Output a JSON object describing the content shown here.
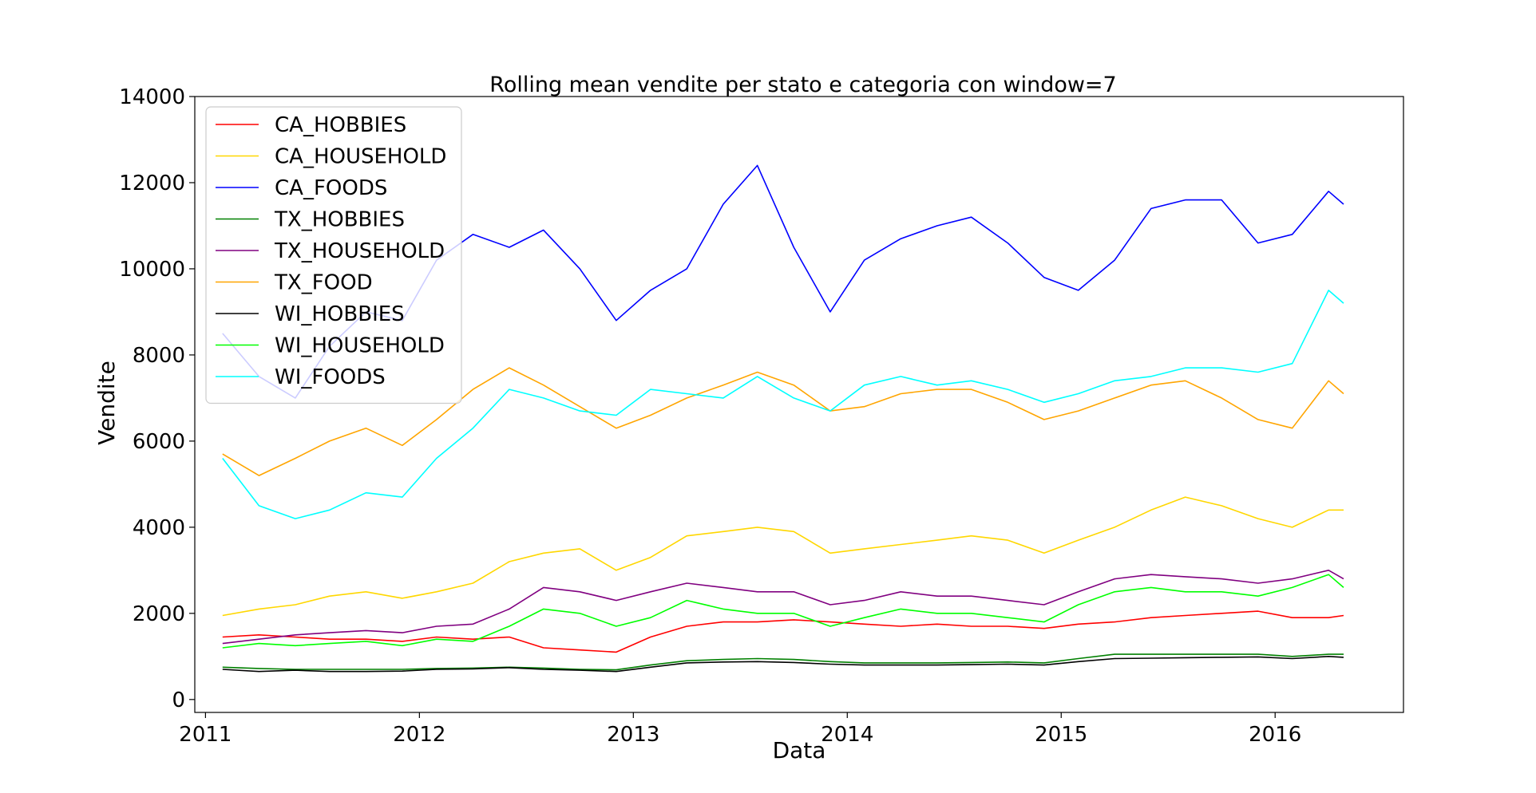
{
  "chart_data": {
    "type": "line",
    "title": "Rolling mean vendite per stato e categoria con window=7",
    "xlabel": "Data",
    "ylabel": "Vendite",
    "xlim": [
      2010.95,
      2016.6
    ],
    "ylim": [
      -300,
      14000
    ],
    "x_ticks": [
      "2011",
      "2012",
      "2013",
      "2014",
      "2015",
      "2016"
    ],
    "y_ticks": [
      "0",
      "2000",
      "4000",
      "6000",
      "8000",
      "10000",
      "12000",
      "14000"
    ],
    "grid": false,
    "legend_position": "upper-left",
    "x": [
      2011.08,
      2011.25,
      2011.42,
      2011.58,
      2011.75,
      2011.92,
      2012.08,
      2012.25,
      2012.42,
      2012.58,
      2012.75,
      2012.92,
      2013.08,
      2013.25,
      2013.42,
      2013.58,
      2013.75,
      2013.92,
      2014.08,
      2014.25,
      2014.42,
      2014.58,
      2014.75,
      2014.92,
      2015.08,
      2015.25,
      2015.42,
      2015.58,
      2015.75,
      2015.92,
      2016.08,
      2016.25,
      2016.32
    ],
    "series": [
      {
        "name": "CA_HOBBIES",
        "color": "#ff0000",
        "values": [
          1450,
          1500,
          1450,
          1400,
          1400,
          1350,
          1450,
          1400,
          1450,
          1200,
          1150,
          1100,
          1450,
          1700,
          1800,
          1800,
          1850,
          1800,
          1750,
          1700,
          1750,
          1700,
          1700,
          1650,
          1750,
          1800,
          1900,
          1950,
          2000,
          2050,
          1900,
          1900,
          1950
        ]
      },
      {
        "name": "CA_HOUSEHOLD",
        "color": "#ffd700",
        "values": [
          1950,
          2100,
          2200,
          2400,
          2500,
          2350,
          2500,
          2700,
          3200,
          3400,
          3500,
          3000,
          3300,
          3800,
          3900,
          4000,
          3900,
          3400,
          3500,
          3600,
          3700,
          3800,
          3700,
          3400,
          3700,
          4000,
          4400,
          4700,
          4500,
          4200,
          4000,
          4400,
          4400
        ]
      },
      {
        "name": "CA_FOODS",
        "color": "#0000ff",
        "values": [
          8500,
          7500,
          7000,
          8200,
          9000,
          8800,
          10200,
          10800,
          10500,
          10900,
          10000,
          8800,
          9500,
          10000,
          11500,
          12400,
          10500,
          9000,
          10200,
          10700,
          11000,
          11200,
          10600,
          9800,
          9500,
          10200,
          11400,
          11600,
          11600,
          10600,
          10800,
          11800,
          11500
        ]
      },
      {
        "name": "TX_HOBBIES",
        "color": "#008000",
        "values": [
          750,
          720,
          700,
          700,
          700,
          700,
          720,
          730,
          750,
          730,
          700,
          690,
          800,
          900,
          930,
          950,
          930,
          880,
          850,
          850,
          850,
          860,
          870,
          850,
          950,
          1050,
          1050,
          1050,
          1050,
          1050,
          1000,
          1050,
          1050
        ]
      },
      {
        "name": "TX_HOUSEHOLD",
        "color": "#800080",
        "values": [
          1300,
          1400,
          1500,
          1550,
          1600,
          1550,
          1700,
          1750,
          2100,
          2600,
          2500,
          2300,
          2500,
          2700,
          2600,
          2500,
          2500,
          2200,
          2300,
          2500,
          2400,
          2400,
          2300,
          2200,
          2500,
          2800,
          2900,
          2850,
          2800,
          2700,
          2800,
          3000,
          2800
        ]
      },
      {
        "name": "TX_FOOD",
        "color": "#ffa500",
        "values": [
          5700,
          5200,
          5600,
          6000,
          6300,
          5900,
          6500,
          7200,
          7700,
          7300,
          6800,
          6300,
          6600,
          7000,
          7300,
          7600,
          7300,
          6700,
          6800,
          7100,
          7200,
          7200,
          6900,
          6500,
          6700,
          7000,
          7300,
          7400,
          7000,
          6500,
          6300,
          7400,
          7100
        ]
      },
      {
        "name": "WI_HOBBIES",
        "color": "#000000",
        "values": [
          700,
          650,
          680,
          650,
          650,
          660,
          700,
          710,
          740,
          700,
          680,
          650,
          750,
          850,
          870,
          880,
          860,
          820,
          800,
          800,
          800,
          810,
          820,
          800,
          880,
          950,
          960,
          970,
          980,
          990,
          950,
          1000,
          980
        ]
      },
      {
        "name": "WI_HOUSEHOLD",
        "color": "#00ff00",
        "values": [
          1200,
          1300,
          1250,
          1300,
          1350,
          1250,
          1400,
          1350,
          1700,
          2100,
          2000,
          1700,
          1900,
          2300,
          2100,
          2000,
          2000,
          1700,
          1900,
          2100,
          2000,
          2000,
          1900,
          1800,
          2200,
          2500,
          2600,
          2500,
          2500,
          2400,
          2600,
          2900,
          2600
        ]
      },
      {
        "name": "WI_FOODS",
        "color": "#00ffff",
        "values": [
          5600,
          4500,
          4200,
          4400,
          4800,
          4700,
          5600,
          6300,
          7200,
          7000,
          6700,
          6600,
          7200,
          7100,
          7000,
          7500,
          7000,
          6700,
          7300,
          7500,
          7300,
          7400,
          7200,
          6900,
          7100,
          7400,
          7500,
          7700,
          7700,
          7600,
          7800,
          9500,
          9200
        ]
      }
    ]
  }
}
